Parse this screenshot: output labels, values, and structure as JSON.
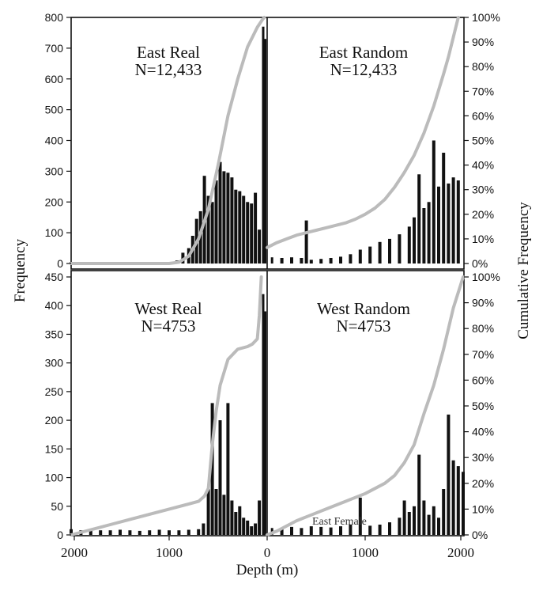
{
  "axes": {
    "xlabel": "Depth (m)",
    "ylabel_left": "Frequency",
    "ylabel_right": "Cumulative Frequency",
    "x_ticks": [
      "2000",
      "1000",
      "0",
      "1000",
      "2000"
    ],
    "y_ticks_top": [
      "0",
      "100",
      "200",
      "300",
      "400",
      "500",
      "600",
      "700",
      "800"
    ],
    "y_ticks_bottom": [
      "0",
      "50",
      "100",
      "150",
      "200",
      "250",
      "300",
      "350",
      "400",
      "450"
    ],
    "y_ticks_right": [
      "0%",
      "10%",
      "20%",
      "30%",
      "40%",
      "50%",
      "60%",
      "70%",
      "80%",
      "90%",
      "100%"
    ]
  },
  "annotation": "East Female",
  "colors": {
    "bars": "#111111",
    "cumulative_line": "#bbbbbb",
    "axes": "#111111"
  },
  "chart_data": [
    {
      "type": "bar",
      "panel": "East Real",
      "title": "East Real",
      "subtitle": "N=12,433",
      "x_direction": "depth increases to the left",
      "xlim": [
        0,
        2000
      ],
      "ylim": [
        0,
        800
      ],
      "y2lim": [
        0,
        100
      ],
      "depth_bins": [
        2000,
        1900,
        1800,
        1700,
        1600,
        1500,
        1400,
        1300,
        1200,
        1100,
        1000,
        920,
        860,
        800,
        760,
        720,
        680,
        640,
        600,
        560,
        520,
        480,
        440,
        400,
        360,
        320,
        280,
        240,
        200,
        160,
        120,
        80,
        40,
        20
      ],
      "frequency": [
        5,
        5,
        5,
        5,
        5,
        5,
        5,
        5,
        5,
        5,
        5,
        10,
        35,
        50,
        90,
        145,
        170,
        285,
        220,
        200,
        270,
        330,
        300,
        295,
        280,
        240,
        235,
        220,
        200,
        195,
        230,
        110,
        770,
        730
      ],
      "cumulative_depth": [
        2000,
        1500,
        1000,
        900,
        800,
        700,
        600,
        500,
        400,
        300,
        200,
        150,
        100,
        50,
        30
      ],
      "cumulative_percent": [
        0,
        0,
        0,
        0.5,
        3,
        10,
        22,
        40,
        60,
        75,
        88,
        92,
        96,
        99,
        100
      ]
    },
    {
      "type": "bar",
      "panel": "East Random",
      "title": "East Random",
      "subtitle": "N=12,433",
      "x_direction": "depth increases to the right",
      "xlim": [
        0,
        2000
      ],
      "ylim": [
        0,
        800
      ],
      "y2lim": [
        0,
        100
      ],
      "depth_bins": [
        50,
        150,
        250,
        350,
        400,
        450,
        550,
        650,
        750,
        850,
        950,
        1050,
        1150,
        1250,
        1350,
        1450,
        1500,
        1550,
        1600,
        1650,
        1700,
        1750,
        1800,
        1850,
        1900,
        1950
      ],
      "frequency": [
        20,
        18,
        20,
        18,
        140,
        12,
        15,
        18,
        22,
        30,
        45,
        55,
        70,
        80,
        95,
        120,
        150,
        290,
        180,
        200,
        400,
        250,
        360,
        260,
        280,
        270
      ],
      "cumulative_depth": [
        0,
        100,
        200,
        300,
        400,
        500,
        600,
        700,
        800,
        900,
        1000,
        1100,
        1200,
        1300,
        1400,
        1500,
        1600,
        1700,
        1800,
        1850,
        1900,
        1950
      ],
      "cumulative_percent": [
        6.5,
        8.5,
        10,
        11.5,
        12.5,
        13.5,
        14.5,
        15.5,
        16.5,
        18,
        20,
        22.5,
        26,
        31,
        37,
        44,
        53,
        64,
        77,
        84,
        92,
        100
      ]
    },
    {
      "type": "bar",
      "panel": "West Real",
      "title": "West Real",
      "subtitle": "N=4753",
      "x_direction": "depth increases to the left",
      "xlim": [
        0,
        2000
      ],
      "ylim": [
        0,
        450
      ],
      "y2lim": [
        0,
        100
      ],
      "depth_bins": [
        2000,
        1900,
        1800,
        1700,
        1600,
        1500,
        1400,
        1300,
        1200,
        1100,
        1000,
        900,
        800,
        700,
        650,
        600,
        560,
        520,
        480,
        440,
        400,
        360,
        320,
        280,
        240,
        200,
        160,
        120,
        80,
        40,
        20
      ],
      "frequency": [
        10,
        8,
        9,
        8,
        8,
        9,
        8,
        7,
        8,
        9,
        8,
        8,
        9,
        10,
        20,
        80,
        230,
        80,
        200,
        70,
        230,
        60,
        40,
        50,
        30,
        25,
        15,
        20,
        60,
        420,
        390
      ],
      "cumulative_depth": [
        2000,
        1800,
        1600,
        1400,
        1200,
        1000,
        800,
        700,
        640,
        600,
        560,
        520,
        480,
        400,
        300,
        200,
        150,
        100,
        80,
        60
      ],
      "cumulative_percent": [
        0,
        2,
        4,
        6,
        8,
        10,
        12,
        13,
        15,
        18,
        35,
        48,
        58,
        68,
        72,
        73,
        74,
        76,
        85,
        100
      ]
    },
    {
      "type": "bar",
      "panel": "West Random",
      "title": "West Random",
      "subtitle": "N=4753",
      "x_direction": "depth increases to the right",
      "xlim": [
        0,
        2000
      ],
      "ylim": [
        0,
        450
      ],
      "y2lim": [
        0,
        100
      ],
      "depth_bins": [
        50,
        150,
        250,
        350,
        450,
        550,
        650,
        750,
        850,
        950,
        1050,
        1150,
        1250,
        1350,
        1400,
        1450,
        1500,
        1550,
        1600,
        1650,
        1700,
        1750,
        1800,
        1850,
        1900,
        1950,
        2000
      ],
      "frequency": [
        12,
        10,
        14,
        12,
        15,
        14,
        13,
        15,
        18,
        65,
        16,
        18,
        22,
        30,
        60,
        40,
        50,
        140,
        60,
        35,
        50,
        30,
        80,
        210,
        130,
        120,
        110
      ],
      "cumulative_depth": [
        0,
        100,
        200,
        300,
        400,
        500,
        600,
        700,
        800,
        900,
        1000,
        1100,
        1200,
        1300,
        1400,
        1500,
        1600,
        1700,
        1800,
        1900,
        2000
      ],
      "cumulative_percent": [
        0,
        1.5,
        3.5,
        5.5,
        7,
        8.5,
        10,
        11.5,
        13,
        14.5,
        16,
        18,
        20,
        23,
        28,
        35,
        47,
        58,
        72,
        88,
        100
      ]
    }
  ]
}
